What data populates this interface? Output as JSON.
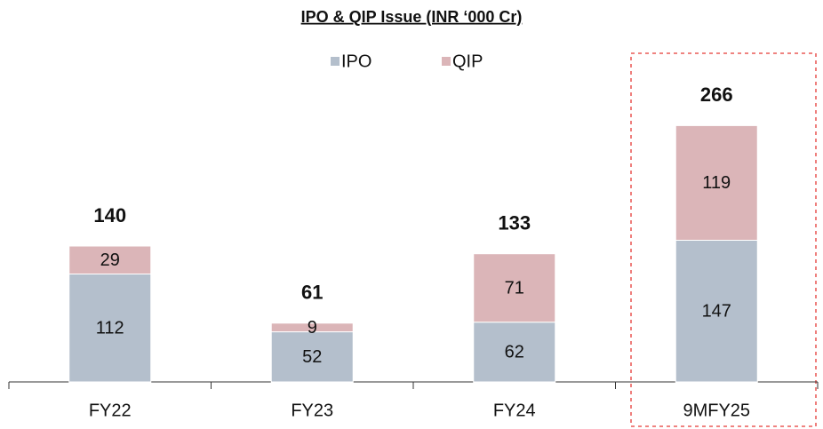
{
  "chart_data": {
    "type": "stacked_bar",
    "title": "IPO & QIP Issue (INR ‘000 Cr)",
    "categories": [
      "FY22",
      "FY23",
      "FY24",
      "9MFY25"
    ],
    "series": [
      {
        "name": "IPO",
        "color": "#b4bfcc",
        "values": [
          112,
          52,
          62,
          147
        ]
      },
      {
        "name": "QIP",
        "color": "#dbb5b8",
        "values": [
          29,
          9,
          71,
          119
        ]
      }
    ],
    "totals": [
      140,
      61,
      133,
      266
    ],
    "ylim": [
      0,
      300
    ],
    "legend": "top"
  }
}
